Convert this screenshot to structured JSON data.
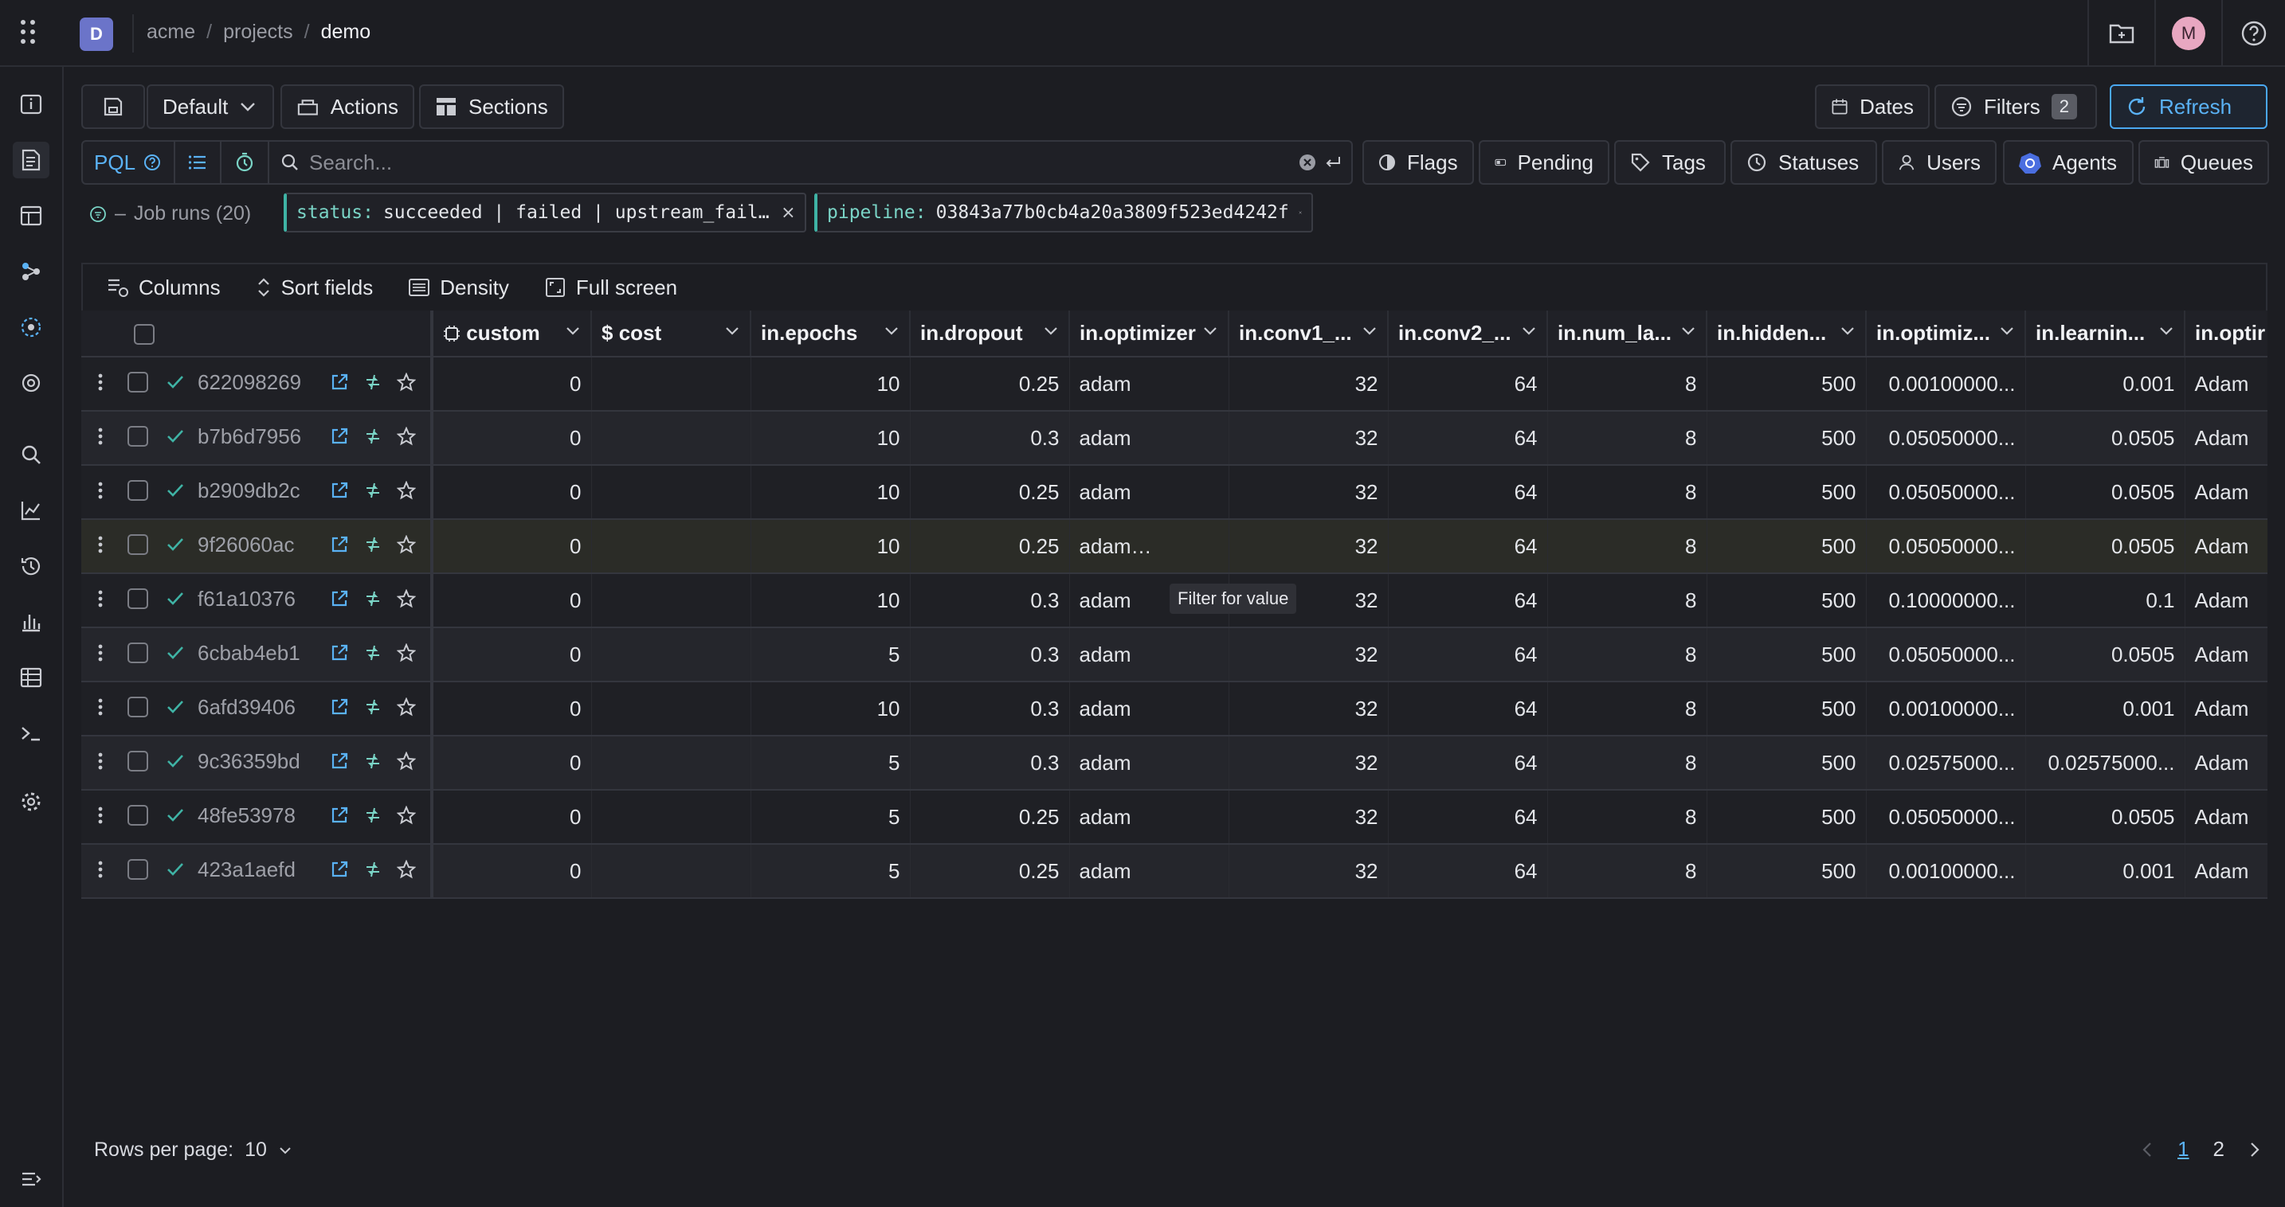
{
  "breadcrumb": {
    "org": "acme",
    "projects": "projects",
    "project": "demo"
  },
  "org_logo_letter": "D",
  "user_initial": "M",
  "toolbar": {
    "preset": "Default",
    "actions": "Actions",
    "sections": "Sections",
    "dates": "Dates",
    "filters": "Filters",
    "filters_count": "2",
    "refresh": "Refresh"
  },
  "search": {
    "mode": "PQL",
    "placeholder": "Search...",
    "quick_filters": [
      "Flags",
      "Pending",
      "Tags",
      "Statuses",
      "Users",
      "Agents",
      "Queues"
    ]
  },
  "job_runs_label": "Job runs (20)",
  "chips": [
    {
      "key": "status:",
      "value": "succeeded | failed | upstream_faile..."
    },
    {
      "key": "pipeline:",
      "value": "03843a77b0cb4a20a3809f523ed4242f"
    }
  ],
  "table_tools": [
    "Columns",
    "Sort fields",
    "Density",
    "Full screen"
  ],
  "columns": [
    "custom",
    "cost",
    "in.epochs",
    "in.dropout",
    "in.optimizer",
    "in.conv1_...",
    "in.conv2_...",
    "in.num_la...",
    "in.hidden...",
    "in.optimiz...",
    "in.learnin...",
    "in.optir"
  ],
  "rows": [
    {
      "id": "622098269",
      "custom": "0",
      "cost": "",
      "epochs": "10",
      "dropout": "0.25",
      "optimizer": "adam",
      "conv1": "32",
      "conv2": "64",
      "num_layers": "8",
      "hidden": "500",
      "optimizer_lr": "0.00100000...",
      "learning_rate": "0.001",
      "optim": "Adam"
    },
    {
      "id": "b7b6d7956",
      "custom": "0",
      "cost": "",
      "epochs": "10",
      "dropout": "0.3",
      "optimizer": "adam",
      "conv1": "32",
      "conv2": "64",
      "num_layers": "8",
      "hidden": "500",
      "optimizer_lr": "0.05050000...",
      "learning_rate": "0.0505",
      "optim": "Adam"
    },
    {
      "id": "b2909db2c",
      "custom": "0",
      "cost": "",
      "epochs": "10",
      "dropout": "0.25",
      "optimizer": "adam",
      "conv1": "32",
      "conv2": "64",
      "num_layers": "8",
      "hidden": "500",
      "optimizer_lr": "0.05050000...",
      "learning_rate": "0.0505",
      "optim": "Adam"
    },
    {
      "id": "9f26060ac",
      "custom": "0",
      "cost": "",
      "epochs": "10",
      "dropout": "0.25",
      "optimizer": "adam",
      "conv1": "32",
      "conv2": "64",
      "num_layers": "8",
      "hidden": "500",
      "optimizer_lr": "0.05050000...",
      "learning_rate": "0.0505",
      "optim": "Adam"
    },
    {
      "id": "f61a10376",
      "custom": "0",
      "cost": "",
      "epochs": "10",
      "dropout": "0.3",
      "optimizer": "adam",
      "conv1": "32",
      "conv2": "64",
      "num_layers": "8",
      "hidden": "500",
      "optimizer_lr": "0.10000000...",
      "learning_rate": "0.1",
      "optim": "Adam"
    },
    {
      "id": "6cbab4eb1",
      "custom": "0",
      "cost": "",
      "epochs": "5",
      "dropout": "0.3",
      "optimizer": "adam",
      "conv1": "32",
      "conv2": "64",
      "num_layers": "8",
      "hidden": "500",
      "optimizer_lr": "0.05050000...",
      "learning_rate": "0.0505",
      "optim": "Adam"
    },
    {
      "id": "6afd39406",
      "custom": "0",
      "cost": "",
      "epochs": "10",
      "dropout": "0.3",
      "optimizer": "adam",
      "conv1": "32",
      "conv2": "64",
      "num_layers": "8",
      "hidden": "500",
      "optimizer_lr": "0.00100000...",
      "learning_rate": "0.001",
      "optim": "Adam"
    },
    {
      "id": "9c36359bd",
      "custom": "0",
      "cost": "",
      "epochs": "5",
      "dropout": "0.3",
      "optimizer": "adam",
      "conv1": "32",
      "conv2": "64",
      "num_layers": "8",
      "hidden": "500",
      "optimizer_lr": "0.02575000...",
      "learning_rate": "0.02575000...",
      "optim": "Adam"
    },
    {
      "id": "48fe53978",
      "custom": "0",
      "cost": "",
      "epochs": "5",
      "dropout": "0.25",
      "optimizer": "adam",
      "conv1": "32",
      "conv2": "64",
      "num_layers": "8",
      "hidden": "500",
      "optimizer_lr": "0.05050000...",
      "learning_rate": "0.0505",
      "optim": "Adam"
    },
    {
      "id": "423a1aefd",
      "custom": "0",
      "cost": "",
      "epochs": "5",
      "dropout": "0.25",
      "optimizer": "adam",
      "conv1": "32",
      "conv2": "64",
      "num_layers": "8",
      "hidden": "500",
      "optimizer_lr": "0.00100000...",
      "learning_rate": "0.001",
      "optim": "Adam"
    }
  ],
  "tooltip": "Filter for value",
  "footer": {
    "rows_per_page_label": "Rows per page:",
    "rows_per_page": "10",
    "pages": [
      "1",
      "2"
    ],
    "current_page": "1"
  },
  "colors": {
    "accent": "#5ab2f5",
    "success": "#3fb3a5",
    "bg": "#1c1d22"
  }
}
